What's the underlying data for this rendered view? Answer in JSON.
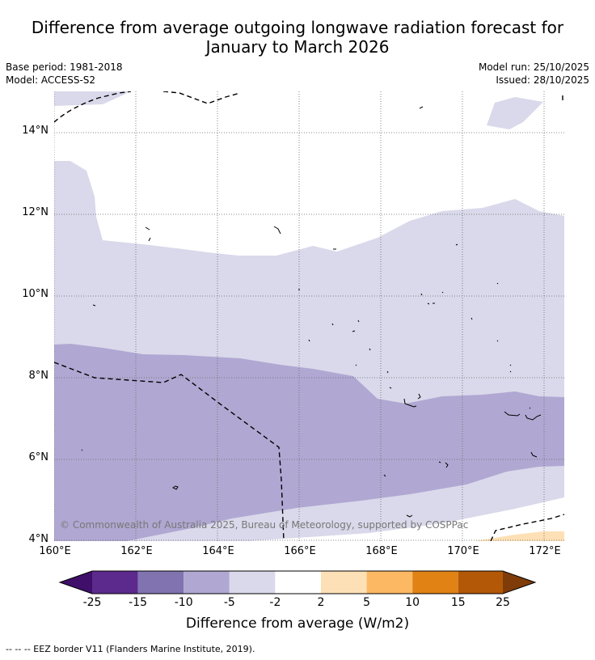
{
  "title_line1": "Difference from average outgoing longwave radiation forecast for",
  "title_line2": "January to March 2026",
  "base_period": "Base period: 1981-2018",
  "model": "Model: ACCESS-S2",
  "model_run": "Model run: 25/10/2025",
  "issued": "Issued: 28/10/2025",
  "y_ticks": [
    "14°N",
    "12°N",
    "10°N",
    "8°N",
    "6°N",
    "4°N"
  ],
  "x_ticks": [
    "160°E",
    "162°E",
    "164°E",
    "166°E",
    "168°E",
    "170°E",
    "172°E"
  ],
  "attribution": "© Commonwealth of Australia 2025, Bureau of Meteorology, supported by COSPPac",
  "colorbar": {
    "labels": [
      "-25",
      "-15",
      "-10",
      "-5",
      "-2",
      "2",
      "5",
      "10",
      "15",
      "25"
    ],
    "colors": [
      "#3f0f6a",
      "#5b2a8c",
      "#8173b0",
      "#b0a8d2",
      "#d9d9eb",
      "#ffffff",
      "#fee0b6",
      "#fdb863",
      "#e08214",
      "#b35806",
      "#7f3b08"
    ],
    "title": "Difference from average (W/m2)"
  },
  "legend_footer": "--  --  -- EEZ border V11 (Flanders Marine Institute, 2019)."
}
